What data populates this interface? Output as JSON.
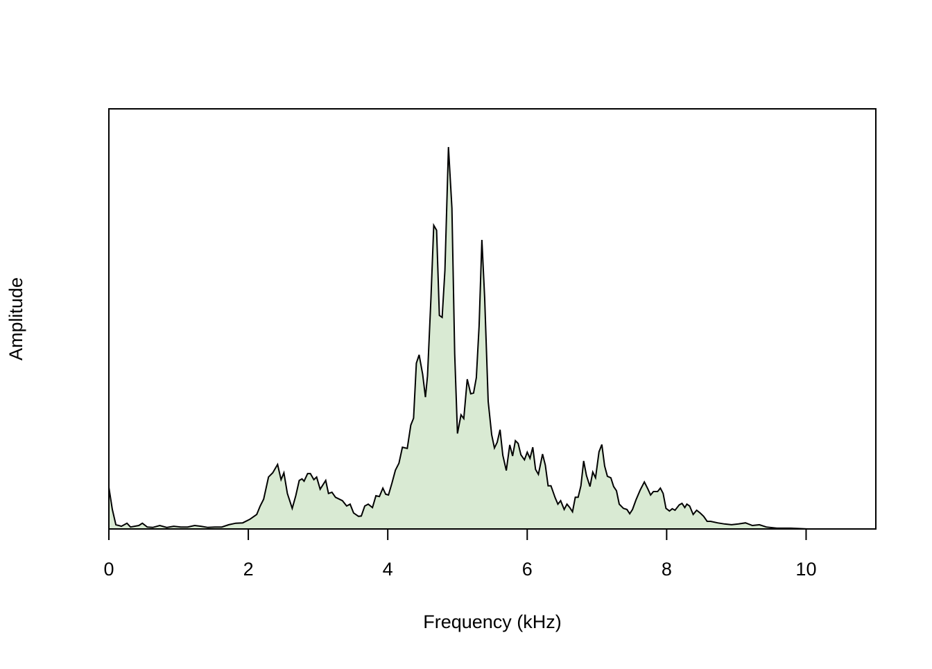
{
  "chart_data": {
    "type": "area",
    "xlabel": "Frequency (kHz)",
    "ylabel": "Amplitude",
    "xlim": [
      0,
      11
    ],
    "xticks": [
      0,
      2,
      4,
      6,
      8,
      10
    ],
    "ylim": [
      0,
      1.1
    ],
    "color": "#d9ead3",
    "line_color": "#000000",
    "x": [
      0,
      0.05,
      0.1,
      0.18,
      0.26,
      0.31,
      0.43,
      0.48,
      0.55,
      0.63,
      0.73,
      0.83,
      0.93,
      1.03,
      1.13,
      1.23,
      1.32,
      1.42,
      1.52,
      1.62,
      1.72,
      1.82,
      1.92,
      2.02,
      2.12,
      2.17,
      2.22,
      2.29,
      2.35,
      2.42,
      2.47,
      2.51,
      2.56,
      2.63,
      2.68,
      2.73,
      2.77,
      2.8,
      2.85,
      2.89,
      2.94,
      2.98,
      3.03,
      3.11,
      3.15,
      3.2,
      3.25,
      3.35,
      3.41,
      3.46,
      3.51,
      3.58,
      3.62,
      3.67,
      3.72,
      3.78,
      3.83,
      3.88,
      3.93,
      3.97,
      4.01,
      4.06,
      4.11,
      4.16,
      4.21,
      4.28,
      4.33,
      4.37,
      4.41,
      4.45,
      4.5,
      4.54,
      4.57,
      4.62,
      4.66,
      4.7,
      4.74,
      4.78,
      4.82,
      4.87,
      4.92,
      4.96,
      5.0,
      5.05,
      5.09,
      5.14,
      5.19,
      5.23,
      5.27,
      5.31,
      5.35,
      5.39,
      5.44,
      5.49,
      5.53,
      5.57,
      5.61,
      5.65,
      5.7,
      5.75,
      5.79,
      5.83,
      5.87,
      5.91,
      5.96,
      6.0,
      6.04,
      6.08,
      6.12,
      6.16,
      6.22,
      6.26,
      6.3,
      6.34,
      6.4,
      6.44,
      6.48,
      6.53,
      6.57,
      6.61,
      6.65,
      6.69,
      6.73,
      6.77,
      6.81,
      6.85,
      6.9,
      6.94,
      6.98,
      7.03,
      7.07,
      7.11,
      7.15,
      7.2,
      7.24,
      7.28,
      7.32,
      7.38,
      7.43,
      7.47,
      7.51,
      7.56,
      7.62,
      7.68,
      7.73,
      7.77,
      7.81,
      7.87,
      7.91,
      7.95,
      7.99,
      8.04,
      8.08,
      8.12,
      8.18,
      8.22,
      8.26,
      8.29,
      8.33,
      8.38,
      8.43,
      8.48,
      8.53,
      8.58,
      8.63,
      8.73,
      8.83,
      8.93,
      9.03,
      9.13,
      9.23,
      9.33,
      9.43,
      9.58,
      9.78,
      10.03,
      10.37,
      11
    ],
    "values": [
      0.109,
      0.051,
      0.011,
      0.007,
      0.015,
      0.005,
      0.009,
      0.015,
      0.005,
      0.004,
      0.009,
      0.004,
      0.007,
      0.005,
      0.005,
      0.009,
      0.007,
      0.004,
      0.005,
      0.005,
      0.011,
      0.015,
      0.016,
      0.025,
      0.038,
      0.06,
      0.078,
      0.136,
      0.147,
      0.169,
      0.129,
      0.147,
      0.093,
      0.054,
      0.087,
      0.127,
      0.131,
      0.125,
      0.145,
      0.145,
      0.129,
      0.136,
      0.104,
      0.127,
      0.093,
      0.096,
      0.083,
      0.074,
      0.06,
      0.065,
      0.042,
      0.033,
      0.034,
      0.06,
      0.065,
      0.056,
      0.087,
      0.085,
      0.107,
      0.091,
      0.089,
      0.12,
      0.154,
      0.172,
      0.214,
      0.211,
      0.272,
      0.29,
      0.434,
      0.456,
      0.405,
      0.345,
      0.401,
      0.606,
      0.795,
      0.782,
      0.559,
      0.554,
      0.677,
      1.0,
      0.84,
      0.459,
      0.25,
      0.299,
      0.289,
      0.392,
      0.354,
      0.356,
      0.396,
      0.532,
      0.757,
      0.606,
      0.334,
      0.247,
      0.212,
      0.227,
      0.26,
      0.193,
      0.153,
      0.22,
      0.191,
      0.231,
      0.224,
      0.194,
      0.181,
      0.201,
      0.185,
      0.214,
      0.156,
      0.143,
      0.196,
      0.167,
      0.113,
      0.113,
      0.082,
      0.065,
      0.074,
      0.051,
      0.065,
      0.056,
      0.045,
      0.083,
      0.083,
      0.113,
      0.178,
      0.14,
      0.111,
      0.149,
      0.134,
      0.202,
      0.221,
      0.165,
      0.138,
      0.134,
      0.111,
      0.1,
      0.065,
      0.054,
      0.051,
      0.04,
      0.051,
      0.076,
      0.102,
      0.123,
      0.105,
      0.089,
      0.098,
      0.098,
      0.107,
      0.093,
      0.054,
      0.047,
      0.053,
      0.049,
      0.063,
      0.067,
      0.056,
      0.065,
      0.06,
      0.038,
      0.049,
      0.042,
      0.033,
      0.02,
      0.02,
      0.016,
      0.013,
      0.011,
      0.013,
      0.016,
      0.009,
      0.011,
      0.005,
      0.002,
      0.002,
      0,
      0,
      0
    ]
  }
}
